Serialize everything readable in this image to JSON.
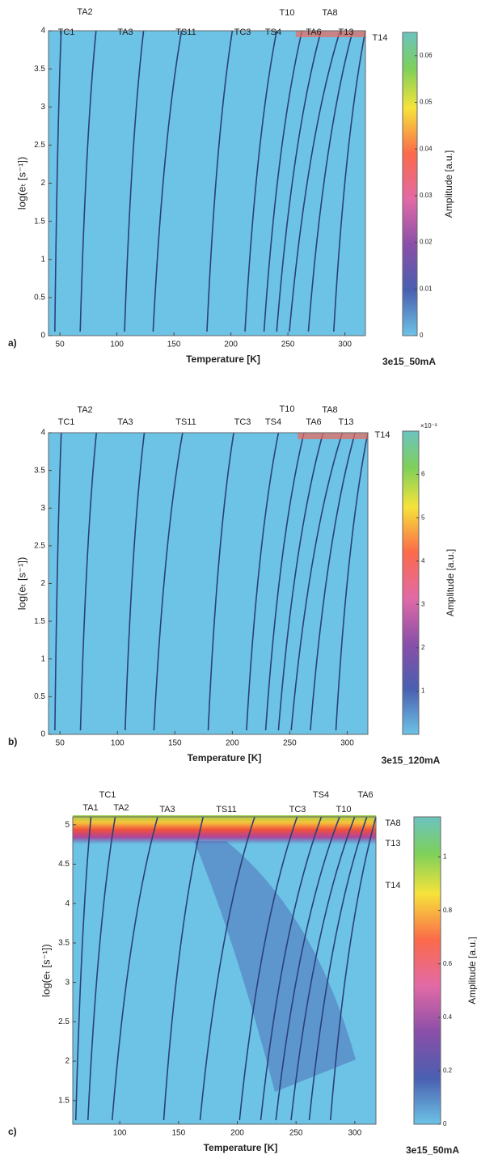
{
  "chart_data": [
    {
      "type": "heatmap",
      "panel_label": "a)",
      "sample": "3e15_50mA",
      "x_label": "Temperature  [K]",
      "y_label": "log(eₜ  [s⁻¹])",
      "colorbar_label": "Amplitude [a.u.]",
      "xlim": [
        40,
        318
      ],
      "xticks": [
        50,
        100,
        150,
        200,
        250,
        300
      ],
      "ylim": [
        0,
        4
      ],
      "yticks": [
        0,
        0.5,
        1,
        1.5,
        2,
        2.5,
        3,
        3.5,
        4
      ],
      "clim": [
        0,
        0.065
      ],
      "cticks": [
        0,
        0.01,
        0.02,
        0.03,
        0.04,
        0.05,
        0.06
      ],
      "trap_labels": [
        "TC1",
        "TA2",
        "TA3",
        "TS11",
        "TC3",
        "TS4",
        "T10",
        "TA6",
        "TA8",
        "T13",
        "T14"
      ]
    },
    {
      "type": "heatmap",
      "panel_label": "b)",
      "sample": "3e15_120mA",
      "x_label": "Temperature  [K]",
      "y_label": "log(eₜ  [s⁻¹])",
      "colorbar_label": "Amplitude [a.u.]",
      "colorbar_multiplier": "×10⁻³",
      "xlim": [
        40,
        318
      ],
      "xticks": [
        50,
        100,
        150,
        200,
        250,
        300
      ],
      "ylim": [
        0,
        4
      ],
      "yticks": [
        0,
        0.5,
        1,
        1.5,
        2,
        2.5,
        3,
        3.5,
        4
      ],
      "clim": [
        0,
        7
      ],
      "cticks": [
        1,
        2,
        3,
        4,
        5,
        6
      ],
      "trap_labels": [
        "TC1",
        "TA2",
        "TA3",
        "TS11",
        "TC3",
        "TS4",
        "T10",
        "TA6",
        "TA8",
        "T13",
        "T14"
      ]
    },
    {
      "type": "heatmap",
      "panel_label": "c)",
      "sample": "3e15_50mA",
      "x_label": "Temperature  [K]",
      "y_label": "log(eₜ  [s⁻¹])",
      "colorbar_label": "Amplitude [a.u.]",
      "xlim": [
        60,
        318
      ],
      "xticks": [
        100,
        150,
        200,
        250,
        300
      ],
      "ylim": [
        1.2,
        5.1
      ],
      "yticks": [
        1.5,
        2,
        2.5,
        3,
        3.5,
        4,
        4.5,
        5
      ],
      "clim": [
        0,
        1.15
      ],
      "cticks": [
        0,
        0.2,
        0.4,
        0.6,
        0.8,
        1
      ],
      "trap_labels": [
        "TC1",
        "TA1",
        "TA2",
        "TA3",
        "TS11",
        "TC3",
        "TS4",
        "T10",
        "TA6",
        "TA8",
        "T13",
        "T14"
      ]
    }
  ]
}
